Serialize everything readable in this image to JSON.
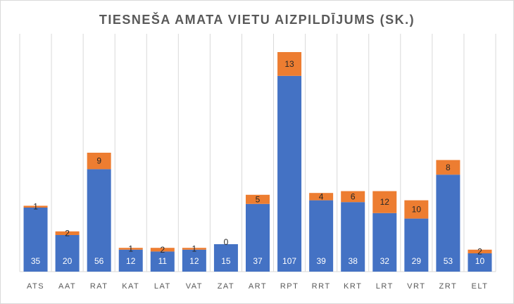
{
  "chart_data": {
    "type": "bar",
    "stacked": true,
    "title": "TIESNEŠA AMATA VIETU AIZPILDĪJUMS (SK.)",
    "xlabel": "",
    "ylabel": "",
    "ylim": [
      0,
      130
    ],
    "grid": "vertical category separators",
    "legend": "none",
    "categories": [
      "ATS",
      "AAT",
      "RAT",
      "KAT",
      "LAT",
      "VAT",
      "ZAT",
      "ART",
      "RPT",
      "RRT",
      "KRT",
      "LRT",
      "VRT",
      "ZRT",
      "ELT"
    ],
    "series": [
      {
        "color": "#4472c4",
        "values": [
          35,
          20,
          56,
          12,
          11,
          12,
          15,
          37,
          107,
          39,
          38,
          32,
          29,
          53,
          10
        ]
      },
      {
        "color": "#ed7d31",
        "values": [
          1,
          2,
          9,
          1,
          2,
          1,
          0,
          5,
          13,
          4,
          6,
          12,
          10,
          8,
          2
        ]
      }
    ]
  }
}
